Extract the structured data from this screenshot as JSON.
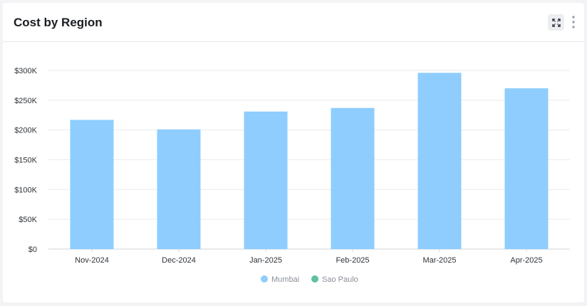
{
  "widget": {
    "title": "Cost by Region",
    "expand_icon": "expand-icon",
    "menu_icon": "vertical-dots-icon"
  },
  "chart_data": {
    "type": "bar",
    "title": "Cost by Region",
    "xlabel": "",
    "ylabel": "",
    "categories": [
      "Nov-2024",
      "Dec-2024",
      "Jan-2025",
      "Feb-2025",
      "Mar-2025",
      "Apr-2025"
    ],
    "series": [
      {
        "name": "Mumbai",
        "color": "#8ecdfe",
        "values": [
          217000,
          201000,
          231000,
          237000,
          296000,
          270000
        ]
      },
      {
        "name": "Sao Paulo",
        "color": "#5ec0a0",
        "values": [
          0,
          0,
          0,
          0,
          0,
          0
        ]
      }
    ],
    "ylim": [
      0,
      300000
    ],
    "yticks": [
      0,
      50000,
      100000,
      150000,
      200000,
      250000,
      300000
    ],
    "ytick_labels": [
      "$0",
      "$50K",
      "$100K",
      "$150K",
      "$200K",
      "$250K",
      "$300K"
    ],
    "grid": true,
    "legend": "bottom-center"
  }
}
